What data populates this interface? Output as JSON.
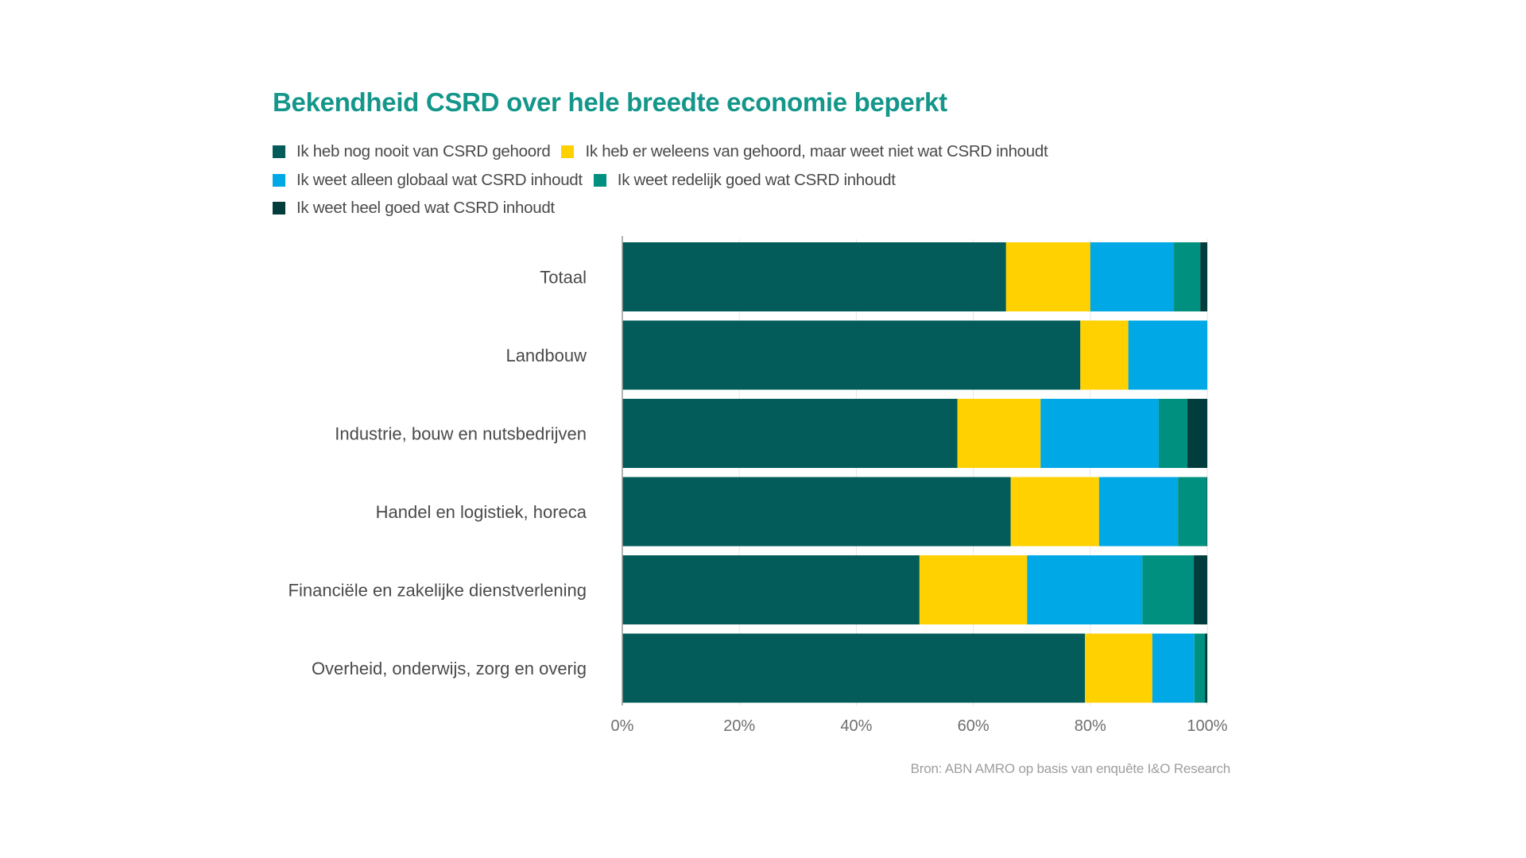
{
  "chart_data": {
    "type": "bar",
    "orientation": "horizontal",
    "stacked": true,
    "title": "Bekendheid CSRD over hele breedte economie beperkt",
    "xlabel": "",
    "ylabel": "",
    "xlim": [
      0,
      100
    ],
    "x_ticks": [
      "0%",
      "20%",
      "40%",
      "60%",
      "80%",
      "100%"
    ],
    "grid": true,
    "legend_position": "top-left",
    "categories": [
      "Totaal",
      "Landbouw",
      "Industrie, bouw en nutsbedrijven",
      "Handel en logistiek, horeca",
      "Financiële en zakelijke dienstverlening",
      "Overheid, onderwijs, zorg en overig"
    ],
    "series": [
      {
        "name": "Ik heb nog nooit van CSRD gehoord",
        "color": "#035c5a",
        "values": [
          65.6,
          78.3,
          57.3,
          66.4,
          50.8,
          79.1
        ]
      },
      {
        "name": "Ik heb er weleens van gehoord, maar weet niet wat CSRD inhoudt",
        "color": "#ffd100",
        "values": [
          14.4,
          8.2,
          14.2,
          15.1,
          18.4,
          11.5
        ]
      },
      {
        "name": "Ik weet alleen globaal wat CSRD inhoudt",
        "color": "#00a8e6",
        "values": [
          14.3,
          13.5,
          20.2,
          13.5,
          19.7,
          7.2
        ]
      },
      {
        "name": "Ik weet redelijk goed wat CSRD inhoudt",
        "color": "#00907f",
        "values": [
          4.5,
          0,
          4.9,
          4.9,
          8.8,
          1.8
        ]
      },
      {
        "name": "Ik weet heel goed wat CSRD inhoudt",
        "color": "#003d3c",
        "values": [
          1.2,
          0,
          3.4,
          0.1,
          2.3,
          0.4
        ]
      }
    ],
    "source": "Bron:  ABN AMRO op basis van enquête I&O Research"
  },
  "colors": {
    "title": "#14968a",
    "grid": "#e6e6e6",
    "axis": "#999999"
  }
}
